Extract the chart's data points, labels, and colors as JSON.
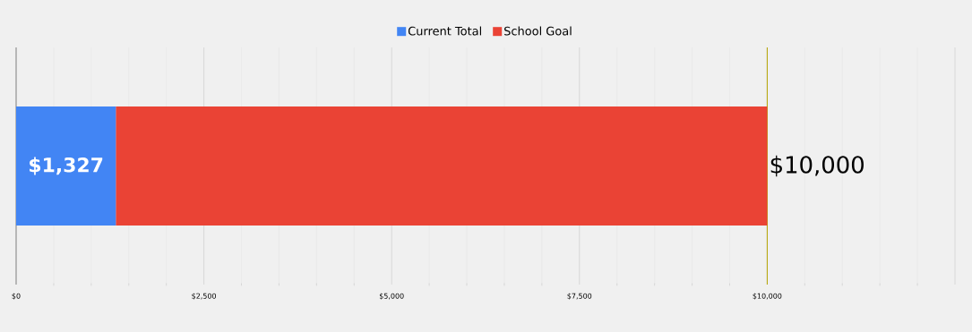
{
  "chart_data": {
    "type": "bar",
    "orientation": "horizontal",
    "stacked": true,
    "categories": [
      null
    ],
    "series": [
      {
        "name": "Current Total",
        "color": "#4285f4",
        "values": [
          1327
        ],
        "value_labels": [
          "$1,327"
        ]
      },
      {
        "name": "School Goal",
        "color": "#ea4335",
        "values": [
          8673
        ]
      }
    ],
    "totals": [
      "$10,000"
    ],
    "xlim": [
      0,
      12500
    ],
    "xticks": [
      {
        "value": 0,
        "label": "$0"
      },
      {
        "value": 2500,
        "label": "$2,500"
      },
      {
        "value": 5000,
        "label": "$5,000"
      },
      {
        "value": 7500,
        "label": "$7,500"
      },
      {
        "value": 10000,
        "label": "$10,000"
      },
      {
        "value": 12500,
        "label": null
      }
    ],
    "ref_lines": [
      {
        "axis": "x",
        "value": 10000,
        "color": "#b5a400"
      }
    ],
    "grid": "x",
    "legend": "top"
  }
}
